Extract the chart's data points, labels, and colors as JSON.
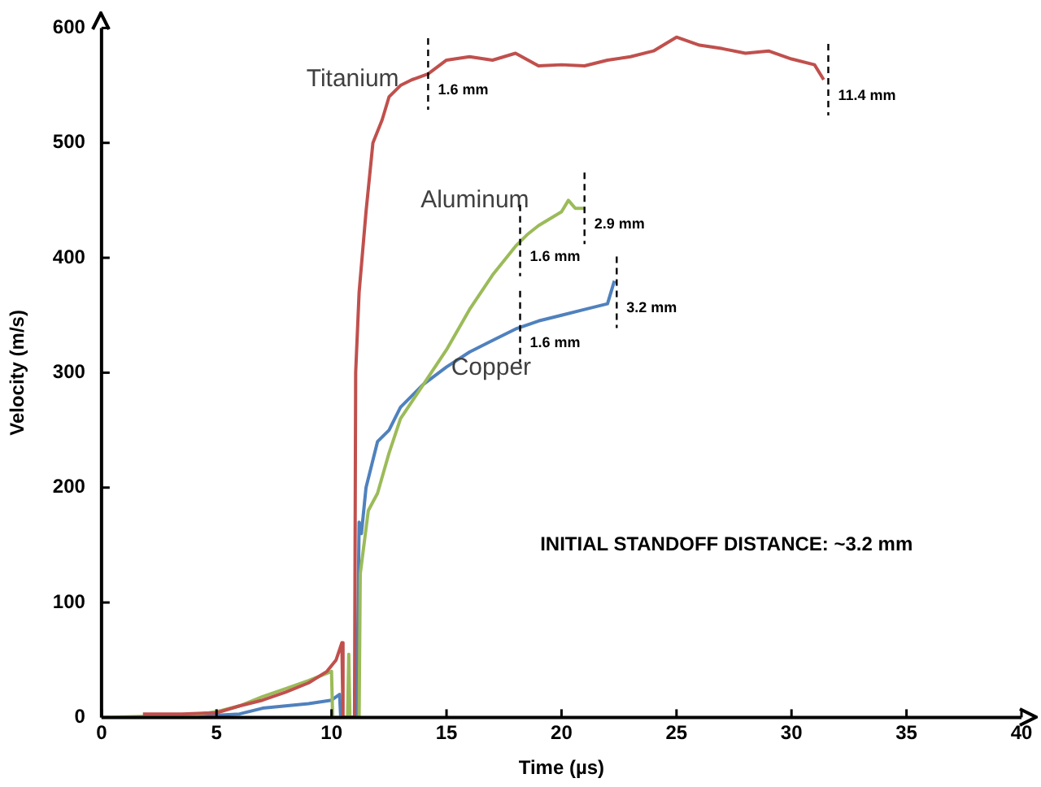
{
  "chart_data": {
    "type": "line",
    "xlabel": "Time (µs)",
    "ylabel": "Velocity (m/s)",
    "xlim": [
      0,
      40
    ],
    "xticks": [
      0,
      5,
      10,
      15,
      20,
      25,
      30,
      35,
      40
    ],
    "ylim": [
      0,
      600
    ],
    "yticks": [
      0,
      100,
      200,
      300,
      400,
      500,
      600
    ],
    "grid": false,
    "legend": false,
    "marker": "none",
    "line_style": "solid",
    "series": [
      {
        "name": "Titanium",
        "color": "#c0504d",
        "x": [
          1.8,
          3.5,
          5,
          6,
          7,
          8,
          9,
          9.8,
          10.2,
          10.45,
          10.5,
          11,
          11.05,
          11.2,
          11.5,
          11.8,
          12.2,
          12.5,
          13,
          13.5,
          14.2,
          15,
          16,
          17,
          18,
          19,
          20,
          21,
          22,
          23,
          24,
          25,
          26,
          27,
          28,
          29,
          30,
          31,
          31.4
        ],
        "values": [
          3,
          3,
          4,
          10,
          15,
          22,
          30,
          40,
          50,
          65,
          0,
          0,
          300,
          370,
          440,
          500,
          520,
          540,
          550,
          555,
          560,
          572,
          575,
          572,
          578,
          567,
          568,
          567,
          572,
          575,
          580,
          592,
          585,
          582,
          578,
          580,
          573,
          568,
          555
        ]
      },
      {
        "name": "Aluminum",
        "color": "#9bbb59",
        "x": [
          0,
          4,
          5,
          6,
          7,
          8,
          9,
          10,
          10.05,
          10.7,
          10.75,
          10.8,
          11.2,
          11.25,
          11.6,
          12,
          12.5,
          13,
          14,
          15,
          16,
          17,
          18,
          18.5,
          19,
          20,
          20.3,
          20.6,
          21
        ],
        "values": [
          0,
          2,
          5,
          10,
          18,
          25,
          32,
          40,
          0,
          0,
          55,
          0,
          0,
          125,
          180,
          195,
          230,
          260,
          290,
          320,
          355,
          385,
          410,
          420,
          428,
          440,
          450,
          443,
          443
        ]
      },
      {
        "name": "Copper",
        "color": "#4f81bd",
        "x": [
          3.5,
          6,
          7,
          8,
          9,
          10,
          10.35,
          10.4,
          11.1,
          11.2,
          11.3,
          11.5,
          12,
          12.5,
          13,
          14,
          15,
          16,
          17,
          18,
          19,
          20,
          21,
          22,
          22.3
        ],
        "values": [
          0,
          3,
          8,
          10,
          12,
          15,
          20,
          0,
          0,
          170,
          160,
          200,
          240,
          250,
          270,
          290,
          305,
          318,
          328,
          338,
          345,
          350,
          355,
          360,
          380
        ]
      }
    ],
    "annotations": [
      {
        "text": "1.6 mm",
        "x": 14.2,
        "y": 560
      },
      {
        "text": "11.4 mm",
        "x": 31.6,
        "y": 555
      },
      {
        "text": "1.6 mm",
        "x": 18.2,
        "y": 415
      },
      {
        "text": "2.9 mm",
        "x": 21,
        "y": 443
      },
      {
        "text": "1.6 mm",
        "x": 18.2,
        "y": 340
      },
      {
        "text": "3.2 mm",
        "x": 22.4,
        "y": 370
      },
      "INITIAL STANDOFF DISTANCE: ~3.2 mm"
    ]
  }
}
